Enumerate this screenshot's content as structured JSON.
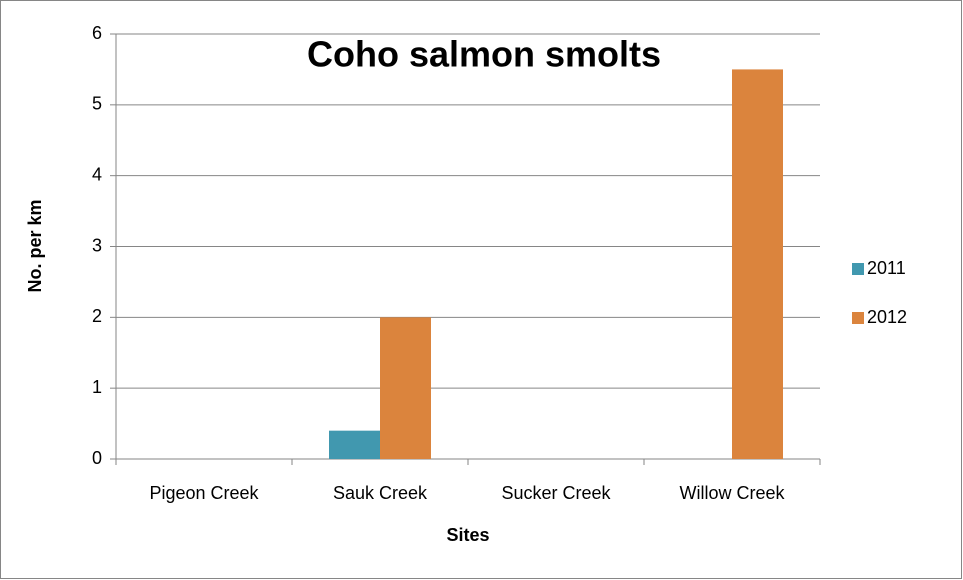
{
  "chart_data": {
    "type": "bar",
    "title": "Coho salmon smolts",
    "x_label": "Sites",
    "y_label": "No. per km",
    "categories": [
      "Pigeon Creek",
      "Sauk Creek",
      "Sucker Creek",
      "Willow Creek"
    ],
    "series": [
      {
        "name": "2011",
        "color": "#4198af",
        "values": [
          0,
          0.4,
          0,
          0
        ]
      },
      {
        "name": "2012",
        "color": "#db843d",
        "values": [
          0,
          2,
          0,
          5.5
        ]
      }
    ],
    "ylim": [
      0,
      6
    ],
    "yticks": [
      0,
      1,
      2,
      3,
      4,
      5,
      6
    ],
    "grid": true,
    "legend": "right"
  }
}
